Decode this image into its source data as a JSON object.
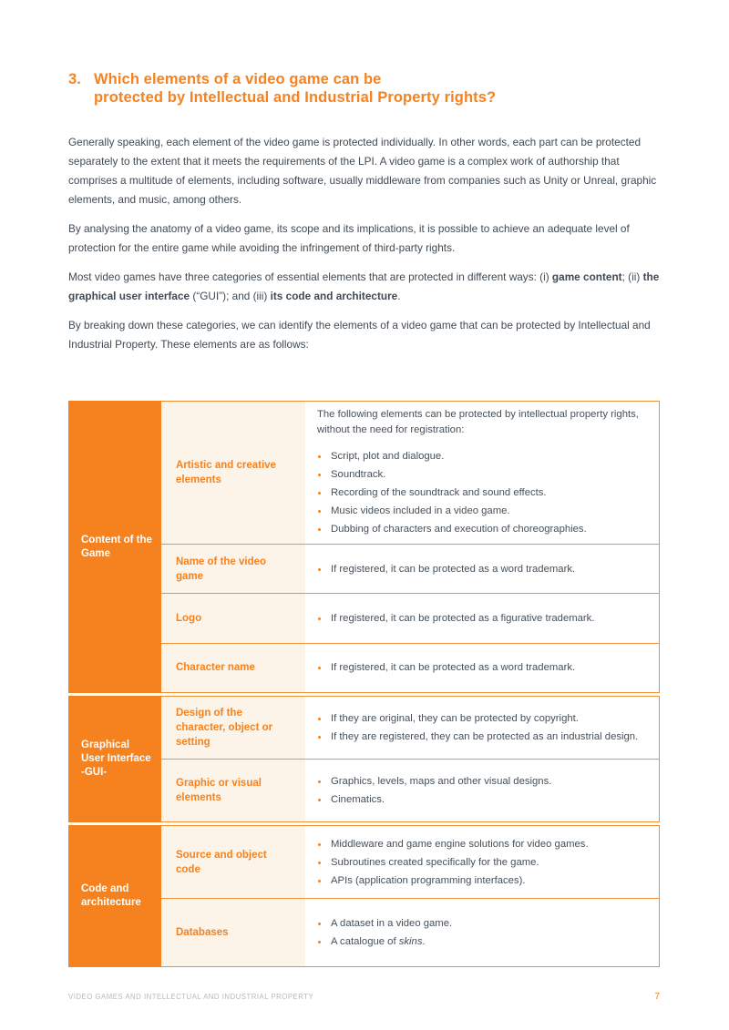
{
  "heading": {
    "number": "3.",
    "line1": "Which elements of a video game can be",
    "line2": "protected by Intellectual and Industrial Property rights?"
  },
  "paragraphs": {
    "p1": "Generally speaking, each element of the video game is protected individually. In other words, each part can be protected separately to the extent that it meets the requirements of the LPI. A video game is a complex work of authorship that comprises a multitude of elements, including software, usually middleware from companies such as Unity or Unreal, graphic elements, and music, among others.",
    "p2": "By analysing the anatomy of a video game, its scope and its implications, it is possible to achieve an adequate level of protection for the entire game while avoiding the infringement of third-party rights.",
    "p3": [
      "Most video games have three categories of essential elements that are protected in different ways: (i) ",
      "game content",
      "; (ii) ",
      "the graphical user interface",
      " (“GUI”); and (iii) ",
      "its code and architecture",
      "."
    ],
    "p4": "By breaking down these categories, we can identify the elements of a video game that can be protected by Intellectual and Industrial Property. These elements are as follows:"
  },
  "table": {
    "sections": [
      {
        "category": "Content of the Game",
        "rows": [
          {
            "label": "Artistic and creative elements",
            "intro": "The following elements can be protected by intellectual property rights, without the need for registration:",
            "bullets": [
              "Script, plot and dialogue.",
              "Soundtrack.",
              "Recording of the soundtrack and sound effects.",
              "Music videos included in a video game.",
              "Dubbing of characters and execution of choreographies."
            ]
          },
          {
            "label": "Name of the video game",
            "bullets": [
              "If registered, it can be protected as a word trademark."
            ]
          },
          {
            "label": "Logo",
            "bullets": [
              "If registered, it can be protected as a figurative trademark."
            ]
          },
          {
            "label": "Character name",
            "bullets": [
              "If registered, it can be protected as a word trademark."
            ]
          }
        ]
      },
      {
        "category": "Graphical User Interface -GUI-",
        "rows": [
          {
            "label": "Design of the character, object or setting",
            "bullets": [
              "If they are original, they can be protected by copyright.",
              "If they are registered, they can be protected as an industrial design."
            ]
          },
          {
            "label": "Graphic or visual elements",
            "bullets": [
              "Graphics, levels, maps and other visual designs.",
              "Cinematics."
            ]
          }
        ]
      },
      {
        "category": "Code and architecture",
        "rows": [
          {
            "label": "Source and object code",
            "bullets": [
              "Middleware and game engine solutions for video games.",
              "Subroutines created specifically for the game.",
              "APIs (application programming interfaces)."
            ]
          },
          {
            "label": "Databases",
            "bullets": [
              "A dataset in a video game.",
              {
                "pre": "A catalogue of ",
                "italic": "skins",
                "post": "."
              }
            ]
          }
        ]
      }
    ]
  },
  "footer": {
    "text": "VIDEO GAMES AND INTELLECTUAL AND INDUSTRIAL PROPERTY",
    "page_number": "7"
  },
  "colors": {
    "accent": "#F5821F",
    "label_bg": "#FCF3E9",
    "body_text": "#3F4A55",
    "footer_text": "#B3BAC1"
  }
}
